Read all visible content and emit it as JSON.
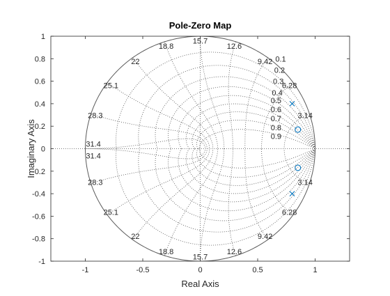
{
  "chart_data": {
    "type": "scatter",
    "title": "Pole-Zero Map",
    "xlabel": "Real Axis",
    "ylabel": "Imaginary Axis",
    "xlim": [
      -1.3,
      1.3
    ],
    "ylim": [
      -1,
      1
    ],
    "xticks": [
      -1,
      -0.5,
      0,
      0.5,
      1
    ],
    "xtick_labels": [
      "-1",
      "-0.5",
      "0",
      "0.5",
      "1"
    ],
    "yticks": [
      1,
      0.8,
      0.6,
      0.4,
      0.2,
      0,
      -0.2,
      -0.4,
      -0.6,
      -0.8,
      -1
    ],
    "ytick_labels": [
      "1",
      "0.8",
      "0.6",
      "0.4",
      "0.2",
      "0",
      "-0.2",
      "-0.4",
      "-0.6",
      "-0.8",
      "-1"
    ],
    "grid": true,
    "grid_style": "zgrid: unit circle, damping ratio and natural frequency curves (dotted)",
    "damping_labels": [
      {
        "text": "0.1",
        "zeta": 0.1
      },
      {
        "text": "0.2",
        "zeta": 0.2
      },
      {
        "text": "0.3",
        "zeta": 0.3
      },
      {
        "text": "0.4",
        "zeta": 0.4
      },
      {
        "text": "0.5",
        "zeta": 0.5
      },
      {
        "text": "0.6",
        "zeta": 0.6
      },
      {
        "text": "0.7",
        "zeta": 0.7
      },
      {
        "text": "0.8",
        "zeta": 0.8
      },
      {
        "text": "0.9",
        "zeta": 0.9
      }
    ],
    "frequency_labels": [
      {
        "text": "3.14",
        "k": 1
      },
      {
        "text": "6.28",
        "k": 2
      },
      {
        "text": "9.42",
        "k": 3
      },
      {
        "text": "12.6",
        "k": 4
      },
      {
        "text": "15.7",
        "k": 5
      },
      {
        "text": "18.8",
        "k": 6
      },
      {
        "text": "22",
        "k": 7
      },
      {
        "text": "25.1",
        "k": 8
      },
      {
        "text": "28.3",
        "k": 9
      },
      {
        "text": "31.4",
        "k": 10
      }
    ],
    "series": [
      {
        "marker": "x",
        "color": "#0072BD",
        "points": [
          [
            0.8,
            0.4
          ],
          [
            0.8,
            -0.4
          ]
        ]
      },
      {
        "marker": "o",
        "color": "#0072BD",
        "points": [
          [
            0.85,
            0.17
          ],
          [
            0.85,
            -0.17
          ]
        ]
      }
    ],
    "colors": {
      "marker": "#0072BD",
      "axis": "#262626",
      "grid": "#4d4d4d",
      "unit_circle": "#595959"
    }
  }
}
